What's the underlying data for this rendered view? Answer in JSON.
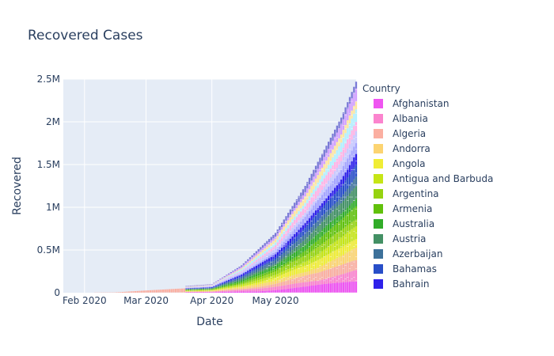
{
  "chart_data": {
    "type": "bar",
    "barmode": "stack",
    "title": "Recovered Cases",
    "xlabel": "Date",
    "ylabel": "Recovered",
    "x_range": [
      "2020-01-22",
      "2020-06-08"
    ],
    "ylim": [
      0,
      2500000
    ],
    "xticks": [
      {
        "date": "2020-02-01",
        "label": "Feb 2020"
      },
      {
        "date": "2020-03-01",
        "label": "Mar 2020"
      },
      {
        "date": "2020-04-01",
        "label": "Apr 2020"
      },
      {
        "date": "2020-05-01",
        "label": "May 2020"
      }
    ],
    "yticks": [
      {
        "value": 0,
        "label": "0"
      },
      {
        "value": 500000,
        "label": "0.5M"
      },
      {
        "value": 1000000,
        "label": "1M"
      },
      {
        "value": 1500000,
        "label": "1.5M"
      },
      {
        "value": 2000000,
        "label": "2M"
      },
      {
        "value": 2500000,
        "label": "2.5M"
      }
    ],
    "grid": true,
    "legend": {
      "title": "Country",
      "placement": "right",
      "entries": [
        {
          "name": "Afghanistan",
          "color": "#ef55f1"
        },
        {
          "name": "Albania",
          "color": "#fb84ce"
        },
        {
          "name": "Algeria",
          "color": "#fbafa1"
        },
        {
          "name": "Andorra",
          "color": "#fcd471"
        },
        {
          "name": "Angola",
          "color": "#f0ed35"
        },
        {
          "name": "Antigua and Barbuda",
          "color": "#c6e516"
        },
        {
          "name": "Argentina",
          "color": "#96d310"
        },
        {
          "name": "Armenia",
          "color": "#61c10b"
        },
        {
          "name": "Australia",
          "color": "#31ac28"
        },
        {
          "name": "Austria",
          "color": "#439064"
        },
        {
          "name": "Azerbaijan",
          "color": "#3d719a"
        },
        {
          "name": "Bahamas",
          "color": "#284ec8"
        },
        {
          "name": "Bahrain",
          "color": "#2e21ea"
        }
      ]
    },
    "totals": {
      "dates": [
        "2020-01-22",
        "2020-02-15",
        "2020-03-01",
        "2020-03-15",
        "2020-04-01",
        "2020-04-15",
        "2020-05-01",
        "2020-05-15",
        "2020-06-01",
        "2020-06-08"
      ],
      "values": [
        0,
        5000,
        40000,
        70000,
        100000,
        320000,
        700000,
        1250000,
        2050000,
        2470000
      ]
    }
  }
}
